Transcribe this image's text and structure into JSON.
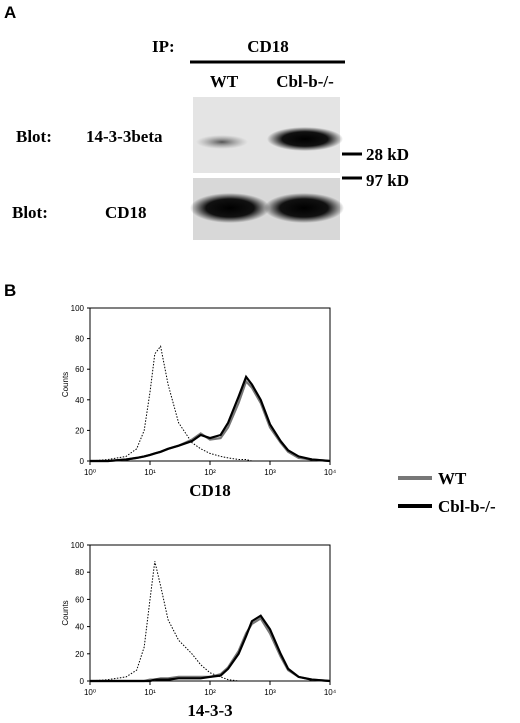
{
  "panel_a": {
    "label": "A",
    "ip_label": "IP:",
    "ip_target": "CD18",
    "lanes": [
      "WT",
      "Cbl-b-/-"
    ],
    "blots": [
      {
        "prefix": "Blot:",
        "antibody": "14-3-3beta"
      },
      {
        "prefix": "Blot:",
        "antibody": "CD18"
      }
    ],
    "markers": [
      "28 kD",
      "97 kD"
    ]
  },
  "panel_b": {
    "label": "B"
  },
  "chart_data": [
    {
      "type": "line",
      "title": "CD18",
      "ylabel": "Counts",
      "xscale": "log",
      "x": [
        1,
        2,
        4,
        6,
        8,
        10,
        12,
        15,
        20,
        30,
        50,
        70,
        100,
        150,
        200,
        300,
        400,
        500,
        700,
        1000,
        1500,
        2000,
        3000,
        5000,
        10000
      ],
      "series": [
        {
          "color": "#000000",
          "style": "dotted",
          "values": [
            0,
            1,
            3,
            8,
            20,
            45,
            70,
            75,
            50,
            25,
            12,
            8,
            5,
            3,
            2,
            1,
            1,
            0,
            0,
            0,
            0,
            0,
            0,
            0,
            0
          ]
        },
        {
          "name": "WT",
          "color": "#777777",
          "style": "solid",
          "values": [
            0,
            0,
            1,
            2,
            3,
            4,
            5,
            6,
            8,
            10,
            14,
            18,
            14,
            15,
            22,
            38,
            52,
            48,
            38,
            22,
            12,
            6,
            2,
            1,
            0
          ]
        },
        {
          "name": "Cbl-b-/-",
          "color": "#000000",
          "style": "solid",
          "values": [
            0,
            0,
            1,
            2,
            3,
            4,
            5,
            6,
            8,
            10,
            13,
            17,
            15,
            17,
            25,
            42,
            55,
            50,
            40,
            24,
            13,
            7,
            3,
            1,
            0
          ]
        }
      ],
      "xlim": [
        1,
        10000
      ],
      "ylim": [
        0,
        100
      ],
      "xticks": [
        {
          "value": 1,
          "label": "10⁰"
        },
        {
          "value": 10,
          "label": "10¹"
        },
        {
          "value": 100,
          "label": "10²"
        },
        {
          "value": 1000,
          "label": "10³"
        },
        {
          "value": 10000,
          "label": "10⁴"
        }
      ],
      "yticks": [
        0,
        20,
        40,
        60,
        80,
        100
      ]
    },
    {
      "type": "line",
      "title": "14-3-3",
      "ylabel": "Counts",
      "xscale": "log",
      "x": [
        1,
        2,
        4,
        6,
        8,
        10,
        12,
        15,
        20,
        30,
        50,
        70,
        100,
        150,
        200,
        300,
        400,
        500,
        700,
        1000,
        1500,
        2000,
        3000,
        5000,
        10000
      ],
      "series": [
        {
          "color": "#000000",
          "style": "dotted",
          "values": [
            0,
            1,
            3,
            8,
            25,
            60,
            88,
            70,
            45,
            30,
            20,
            12,
            6,
            3,
            1,
            0,
            0,
            0,
            0,
            0,
            0,
            0,
            0,
            0,
            0
          ]
        },
        {
          "color": "#777777",
          "style": "solid",
          "values": [
            0,
            0,
            0,
            0,
            0,
            1,
            1,
            2,
            2,
            3,
            3,
            3,
            3,
            5,
            10,
            22,
            35,
            42,
            46,
            35,
            18,
            8,
            3,
            1,
            0
          ]
        },
        {
          "color": "#000000",
          "style": "solid",
          "values": [
            0,
            0,
            0,
            0,
            0,
            0,
            1,
            1,
            1,
            2,
            2,
            2,
            3,
            4,
            9,
            20,
            33,
            44,
            48,
            38,
            20,
            9,
            3,
            1,
            0
          ]
        }
      ],
      "xlim": [
        1,
        10000
      ],
      "ylim": [
        0,
        100
      ],
      "xticks": [
        {
          "value": 1,
          "label": "10⁰"
        },
        {
          "value": 10,
          "label": "10¹"
        },
        {
          "value": 100,
          "label": "10²"
        },
        {
          "value": 1000,
          "label": "10³"
        },
        {
          "value": 10000,
          "label": "10⁴"
        }
      ],
      "yticks": [
        0,
        20,
        40,
        60,
        80,
        100
      ]
    }
  ]
}
